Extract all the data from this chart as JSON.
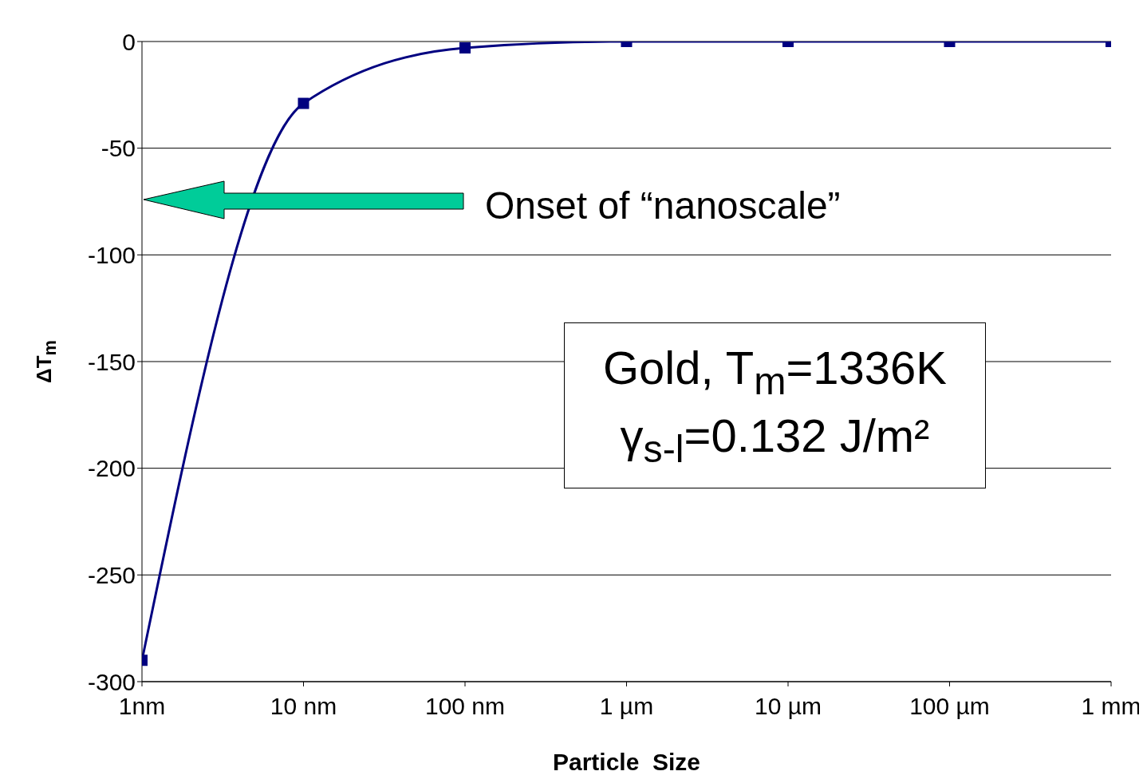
{
  "chart_data": {
    "type": "line",
    "xlabel": "Particle  Size",
    "ylabel": "ΔT$_{m}$",
    "categories": [
      "1nm",
      "10 nm",
      "100 nm",
      "1 µm",
      "10 µm",
      "100 µm",
      "1 mm"
    ],
    "series": [
      {
        "color": "#000080",
        "values": [
          -290,
          -29,
          -3,
          0,
          0,
          0,
          0
        ]
      }
    ],
    "ylim": [
      -300,
      0
    ],
    "yticks": [
      -300,
      -250,
      -200,
      -150,
      -100,
      -50,
      0
    ],
    "grid": "y",
    "marker": "square",
    "line_style": "solid",
    "annotations": [
      "Onset of “nanoscale”",
      "Gold, T$_{m}$=1336K\nγ$_{s-l}$=0.132 J/m²"
    ]
  }
}
